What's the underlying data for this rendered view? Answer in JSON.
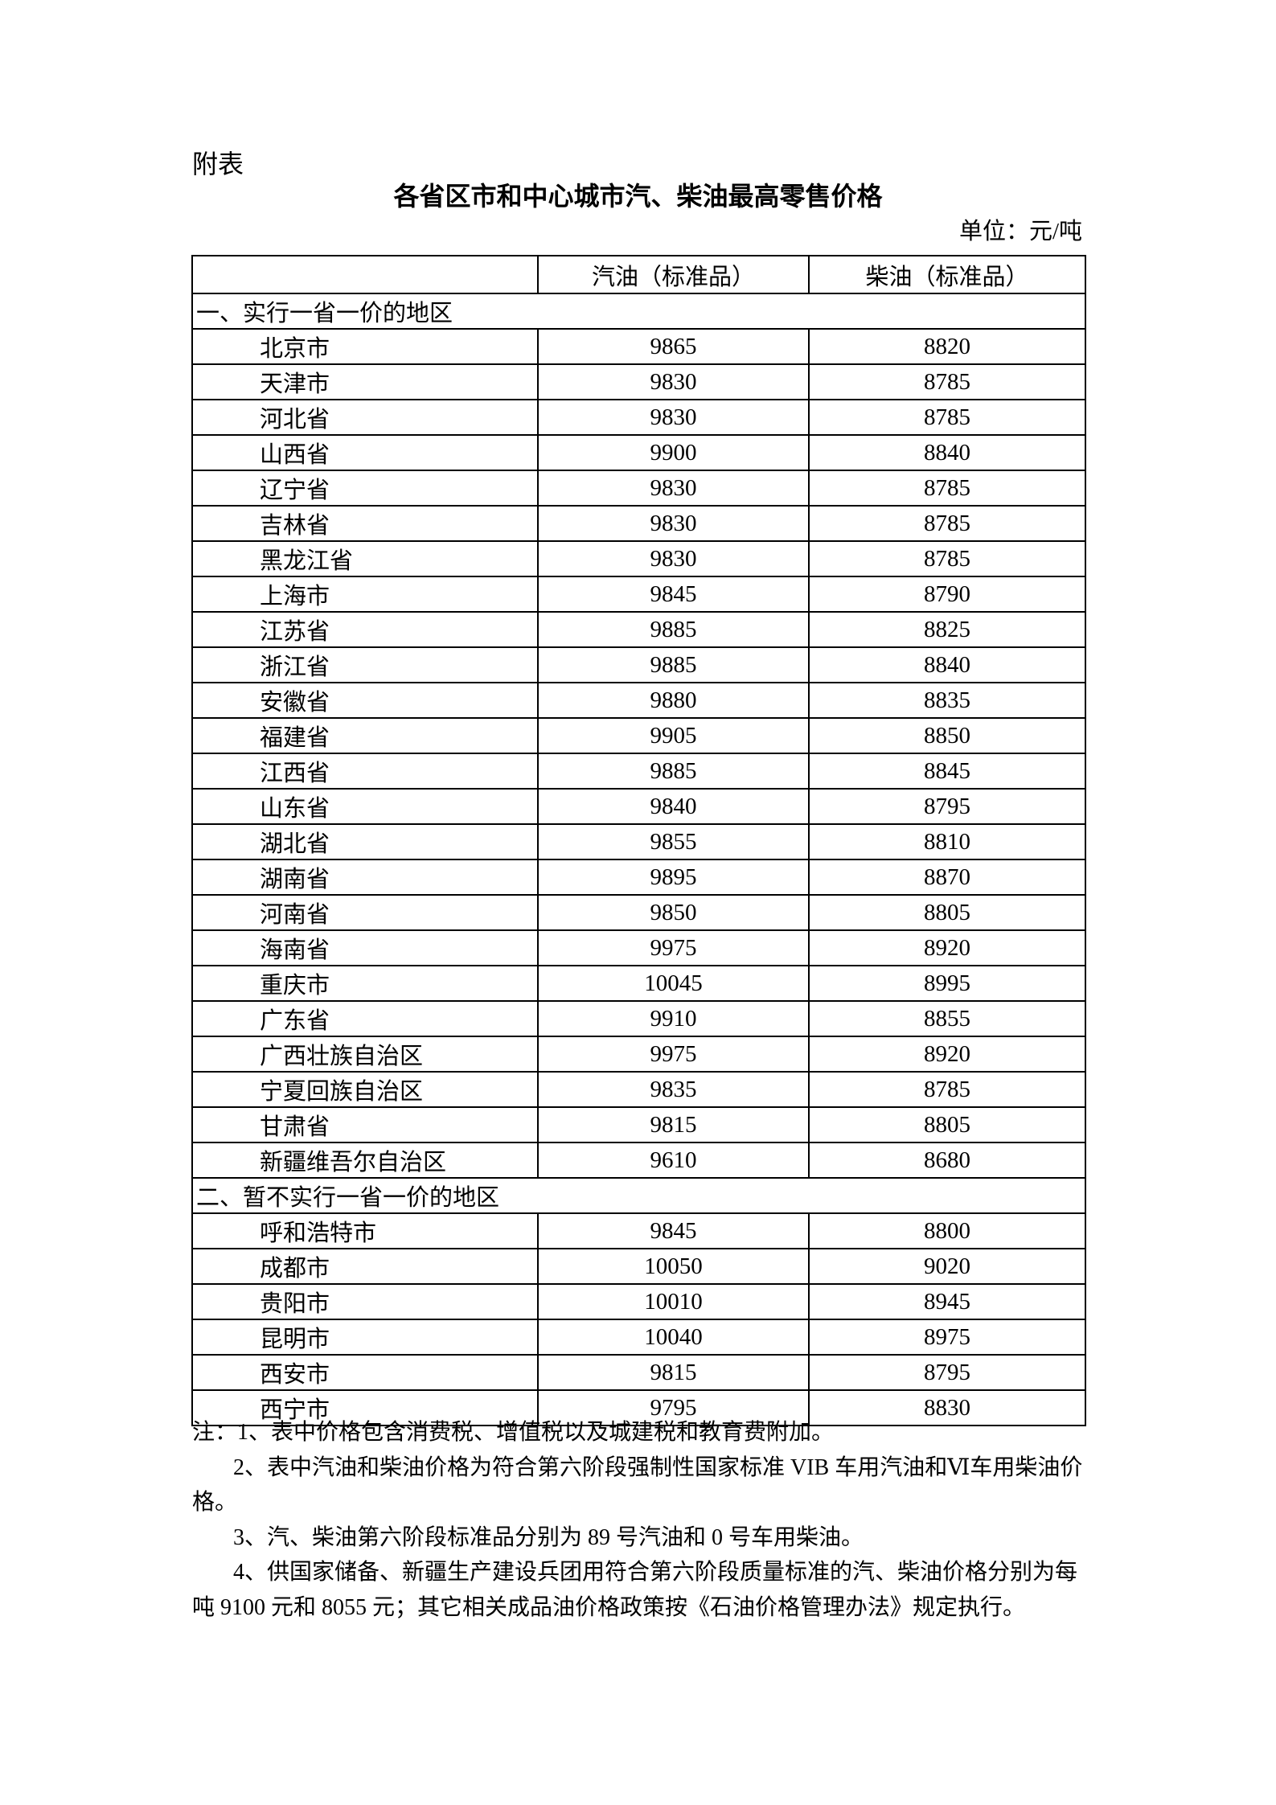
{
  "page": {
    "attachment_label": "附表",
    "title": "各省区市和中心城市汽、柴油最高零售价格",
    "unit_label": "单位：元/吨"
  },
  "table": {
    "columns": [
      "",
      "汽油（标准品）",
      "柴油（标准品）"
    ],
    "sections": [
      {
        "heading": "一、实行一省一价的地区",
        "rows": [
          {
            "region": "北京市",
            "gasoline": "9865",
            "diesel": "8820"
          },
          {
            "region": "天津市",
            "gasoline": "9830",
            "diesel": "8785"
          },
          {
            "region": "河北省",
            "gasoline": "9830",
            "diesel": "8785"
          },
          {
            "region": "山西省",
            "gasoline": "9900",
            "diesel": "8840"
          },
          {
            "region": "辽宁省",
            "gasoline": "9830",
            "diesel": "8785"
          },
          {
            "region": "吉林省",
            "gasoline": "9830",
            "diesel": "8785"
          },
          {
            "region": "黑龙江省",
            "gasoline": "9830",
            "diesel": "8785"
          },
          {
            "region": "上海市",
            "gasoline": "9845",
            "diesel": "8790"
          },
          {
            "region": "江苏省",
            "gasoline": "9885",
            "diesel": "8825"
          },
          {
            "region": "浙江省",
            "gasoline": "9885",
            "diesel": "8840"
          },
          {
            "region": "安徽省",
            "gasoline": "9880",
            "diesel": "8835"
          },
          {
            "region": "福建省",
            "gasoline": "9905",
            "diesel": "8850"
          },
          {
            "region": "江西省",
            "gasoline": "9885",
            "diesel": "8845"
          },
          {
            "region": "山东省",
            "gasoline": "9840",
            "diesel": "8795"
          },
          {
            "region": "湖北省",
            "gasoline": "9855",
            "diesel": "8810"
          },
          {
            "region": "湖南省",
            "gasoline": "9895",
            "diesel": "8870"
          },
          {
            "region": "河南省",
            "gasoline": "9850",
            "diesel": "8805"
          },
          {
            "region": "海南省",
            "gasoline": "9975",
            "diesel": "8920"
          },
          {
            "region": "重庆市",
            "gasoline": "10045",
            "diesel": "8995"
          },
          {
            "region": "广东省",
            "gasoline": "9910",
            "diesel": "8855"
          },
          {
            "region": "广西壮族自治区",
            "gasoline": "9975",
            "diesel": "8920"
          },
          {
            "region": "宁夏回族自治区",
            "gasoline": "9835",
            "diesel": "8785"
          },
          {
            "region": "甘肃省",
            "gasoline": "9815",
            "diesel": "8805"
          },
          {
            "region": "新疆维吾尔自治区",
            "gasoline": "9610",
            "diesel": "8680"
          }
        ]
      },
      {
        "heading": "二、暂不实行一省一价的地区",
        "rows": [
          {
            "region": "呼和浩特市",
            "gasoline": "9845",
            "diesel": "8800"
          },
          {
            "region": "成都市",
            "gasoline": "10050",
            "diesel": "9020"
          },
          {
            "region": "贵阳市",
            "gasoline": "10010",
            "diesel": "8945"
          },
          {
            "region": "昆明市",
            "gasoline": "10040",
            "diesel": "8975"
          },
          {
            "region": "西安市",
            "gasoline": "9815",
            "diesel": "8795"
          },
          {
            "region": "西宁市",
            "gasoline": "9795",
            "diesel": "8830"
          }
        ]
      }
    ]
  },
  "notes": {
    "lines": [
      {
        "text": "注：1、表中价格包含消费税、增值税以及城建税和教育费附加。",
        "indent": false
      },
      {
        "text": "2、表中汽油和柴油价格为符合第六阶段强制性国家标准 VIB 车用汽油和Ⅵ车用柴油价",
        "indent": true
      },
      {
        "text": "格。",
        "indent": false
      },
      {
        "text": "3、汽、柴油第六阶段标准品分别为 89 号汽油和 0 号车用柴油。",
        "indent": true
      },
      {
        "text": "4、供国家储备、新疆生产建设兵团用符合第六阶段质量标准的汽、柴油价格分别为每",
        "indent": true
      },
      {
        "text": "吨 9100 元和 8055 元；其它相关成品油价格政策按《石油价格管理办法》规定执行。",
        "indent": false
      }
    ]
  }
}
